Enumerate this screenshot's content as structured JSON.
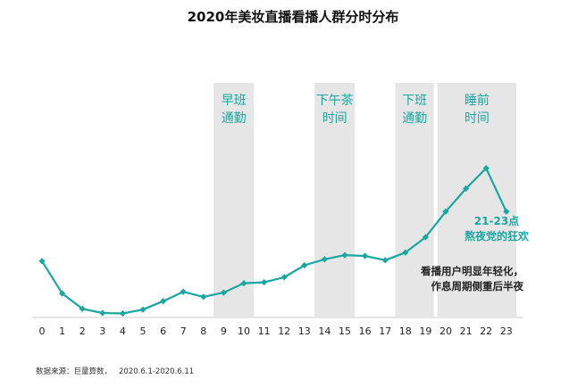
{
  "title": "2020年美妆直播看播人群分时分布",
  "source_label": "数据来源：巨量算数，",
  "source_range": "2020.6.1-2020.6.11",
  "colors": {
    "line": "#1aa7a1",
    "band": "#e6e6e6",
    "band_text": "#1aa7a1",
    "axis": "#cccccc"
  },
  "chart_data": {
    "type": "line",
    "title": "2020年美妆直播看播人群分时分布",
    "x": [
      0,
      1,
      2,
      3,
      4,
      5,
      6,
      7,
      8,
      9,
      10,
      11,
      12,
      13,
      14,
      15,
      16,
      17,
      18,
      19,
      20,
      21,
      22,
      23
    ],
    "x_tick_labels": [
      "0",
      "1",
      "2",
      "3",
      "4",
      "5",
      "6",
      "7",
      "8",
      "9",
      "10",
      "11",
      "12",
      "13",
      "14",
      "15",
      "16",
      "17",
      "18",
      "19",
      "20",
      "21",
      "22",
      "23"
    ],
    "values": [
      34.4,
      13.3,
      3.3,
      0.6,
      0.3,
      2.8,
      8.3,
      14.4,
      11.1,
      13.9,
      20.0,
      20.6,
      23.9,
      31.7,
      35.6,
      38.3,
      37.8,
      35.0,
      40.0,
      50.0,
      66.7,
      81.7,
      95.0,
      66.7
    ],
    "ylim": [
      0,
      100
    ],
    "grid": false,
    "bands": [
      {
        "label_line1": "早班",
        "label_line2": "通勤",
        "from": 8.5,
        "to": 10.5
      },
      {
        "label_line1": "下午茶",
        "label_line2": "时间",
        "from": 13.5,
        "to": 15.5
      },
      {
        "label_line1": "下班",
        "label_line2": "通勤",
        "from": 17.5,
        "to": 19.5
      },
      {
        "label_line1": "睡前",
        "label_line2": "时间",
        "from": 19.5,
        "to": 23.5
      }
    ],
    "annotations": [
      {
        "line1": "21-23点",
        "line2": "熬夜党的狂欢",
        "color": "#1aa7a1"
      },
      {
        "line1": "看播用户明显年轻化，",
        "line2": "作息周期侧重后半夜",
        "color": "#222222"
      }
    ]
  }
}
